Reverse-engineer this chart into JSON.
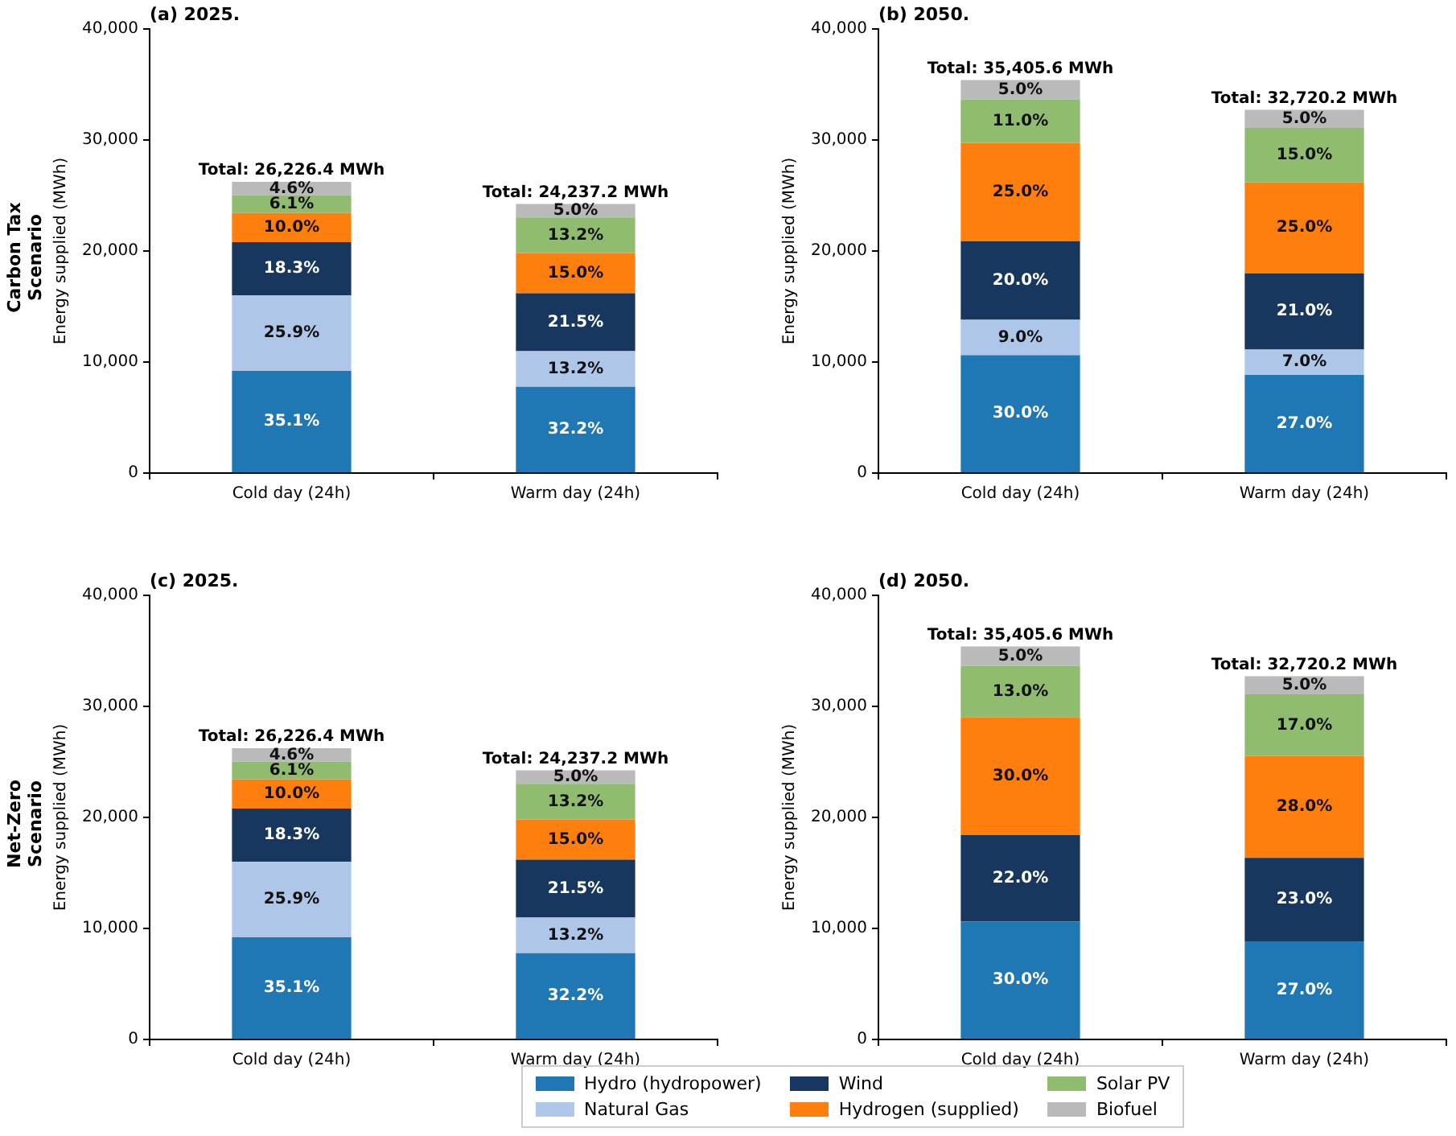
{
  "chart_data": [
    {
      "type": "bar",
      "title": "(a) 2025.",
      "subtitle": "Carbon Tax\nScenario",
      "ylabel": "Energy supplied (MWh)",
      "categories": [
        "Cold day (24h)",
        "Warm day (24h)"
      ],
      "stacked": true,
      "ylim": [
        0,
        40000
      ],
      "yticks": [
        {
          "value": 0,
          "label": "0"
        },
        {
          "value": 10000,
          "label": "10,000"
        },
        {
          "value": 20000,
          "label": "20,000"
        },
        {
          "value": 30000,
          "label": "30,000"
        },
        {
          "value": 40000,
          "label": "40,000"
        }
      ],
      "grid": false,
      "legend": "bottom",
      "totals": [
        "Total: 26,226.4 MWh",
        "Total: 24,237.2 MWh"
      ],
      "annotations": [
        "35.1%",
        "25.9%",
        "18.3%",
        "10.0%",
        "6.1%",
        "4.6%",
        "32.2%",
        "13.2%",
        "21.5%",
        "15.0%",
        "13.2%",
        "5.0%"
      ],
      "series": [
        {
          "name": "Hydro (hydropower)",
          "color": "#1f77b4",
          "values": [
            9205.5,
            7780.1
          ]
        },
        {
          "name": "Natural Gas",
          "color": "#aec7e8",
          "values": [
            6792.6,
            3199.3
          ]
        },
        {
          "name": "Wind",
          "color": "#17375e",
          "values": [
            4799.4,
            5211.0
          ]
        },
        {
          "name": "Hydrogen (supplied)",
          "color": "#ff7f0e",
          "values": [
            2622.6,
            3635.6
          ]
        },
        {
          "name": "Solar PV",
          "color": "#8fbc6f",
          "values": [
            1599.8,
            3199.3
          ]
        },
        {
          "name": "Biofuel",
          "color": "#bababa",
          "values": [
            1206.5,
            1211.9
          ]
        }
      ]
    },
    {
      "type": "bar",
      "title": "(b) 2050.",
      "ylabel": "Energy supplied (MWh)",
      "categories": [
        "Cold day (24h)",
        "Warm day (24h)"
      ],
      "stacked": true,
      "ylim": [
        0,
        40000
      ],
      "yticks": [
        {
          "value": 0,
          "label": "0"
        },
        {
          "value": 10000,
          "label": "10,000"
        },
        {
          "value": 20000,
          "label": "20,000"
        },
        {
          "value": 30000,
          "label": "30,000"
        },
        {
          "value": 40000,
          "label": "40,000"
        }
      ],
      "grid": false,
      "totals": [
        "Total: 35,405.6 MWh",
        "Total: 32,720.2 MWh"
      ],
      "annotations": [
        "30.0%",
        "9.0%",
        "20.0%",
        "25.0%",
        "11.0%",
        "5.0%",
        "27.0%",
        "7.0%",
        "21.0%",
        "25.0%",
        "15.0%",
        "5.0%"
      ],
      "series": [
        {
          "color": "#1f77b4",
          "values": [
            10621.7,
            8834.5
          ]
        },
        {
          "color": "#aec7e8",
          "values": [
            3186.5,
            2290.4
          ]
        },
        {
          "color": "#17375e",
          "values": [
            7081.1,
            6871.2
          ]
        },
        {
          "color": "#ff7f0e",
          "values": [
            8851.4,
            8180.1
          ]
        },
        {
          "color": "#8fbc6f",
          "values": [
            3894.6,
            4908.0
          ]
        },
        {
          "color": "#bababa",
          "values": [
            1770.3,
            1636.0
          ]
        }
      ]
    },
    {
      "type": "bar",
      "title": "(c) 2025.",
      "subtitle": "Net-Zero\nScenario",
      "ylabel": "Energy supplied (MWh)",
      "categories": [
        "Cold day (24h)",
        "Warm day (24h)"
      ],
      "stacked": true,
      "ylim": [
        0,
        40000
      ],
      "yticks": [
        {
          "value": 0,
          "label": "0"
        },
        {
          "value": 10000,
          "label": "10,000"
        },
        {
          "value": 20000,
          "label": "20,000"
        },
        {
          "value": 30000,
          "label": "30,000"
        },
        {
          "value": 40000,
          "label": "40,000"
        }
      ],
      "grid": false,
      "totals": [
        "Total: 26,226.4 MWh",
        "Total: 24,237.2 MWh"
      ],
      "annotations": [
        "35.1%",
        "25.9%",
        "18.3%",
        "10.0%",
        "6.1%",
        "4.6%",
        "32.2%",
        "13.2%",
        "21.5%",
        "15.0%",
        "13.2%",
        "5.0%"
      ],
      "series": [
        {
          "color": "#1f77b4",
          "values": [
            9205.5,
            7780.1
          ]
        },
        {
          "color": "#aec7e8",
          "values": [
            6792.6,
            3199.3
          ]
        },
        {
          "color": "#17375e",
          "values": [
            4799.4,
            5211.0
          ]
        },
        {
          "color": "#ff7f0e",
          "values": [
            2622.6,
            3635.6
          ]
        },
        {
          "color": "#8fbc6f",
          "values": [
            1599.8,
            3199.3
          ]
        },
        {
          "color": "#bababa",
          "values": [
            1206.5,
            1211.9
          ]
        }
      ]
    },
    {
      "type": "bar",
      "title": "(d) 2050.",
      "ylabel": "Energy supplied (MWh)",
      "categories": [
        "Cold day (24h)",
        "Warm day (24h)"
      ],
      "stacked": true,
      "ylim": [
        0,
        40000
      ],
      "yticks": [
        {
          "value": 0,
          "label": "0"
        },
        {
          "value": 10000,
          "label": "10,000"
        },
        {
          "value": 20000,
          "label": "20,000"
        },
        {
          "value": 30000,
          "label": "30,000"
        },
        {
          "value": 40000,
          "label": "40,000"
        }
      ],
      "grid": false,
      "totals": [
        "Total: 35,405.6 MWh",
        "Total: 32,720.2 MWh"
      ],
      "annotations": [
        "30.0%",
        "22.0%",
        "30.0%",
        "13.0%",
        "5.0%",
        "27.0%",
        "23.0%",
        "28.0%",
        "17.0%",
        "5.0%"
      ],
      "series": [
        {
          "color": "#1f77b4",
          "values": [
            10621.7,
            8834.5
          ]
        },
        {
          "color": "#aec7e8",
          "values": [
            0,
            0
          ]
        },
        {
          "color": "#17375e",
          "values": [
            7789.2,
            7525.6
          ]
        },
        {
          "color": "#ff7f0e",
          "values": [
            10621.7,
            9161.7
          ]
        },
        {
          "color": "#8fbc6f",
          "values": [
            4602.7,
            5562.4
          ]
        },
        {
          "color": "#bababa",
          "values": [
            1770.3,
            1636.0
          ]
        }
      ]
    }
  ]
}
